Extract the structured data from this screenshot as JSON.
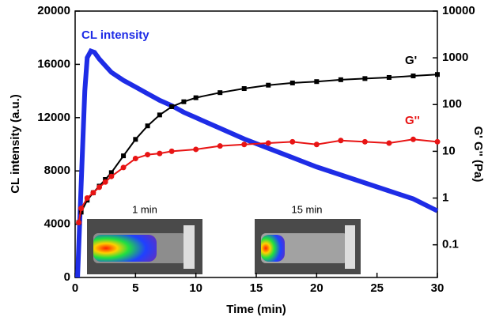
{
  "chart_data": {
    "type": "line",
    "x_label": "Time (min)",
    "y_label": "CL intensity (a.u.)",
    "y2_label": "G' G'' (Pa)",
    "xlim": [
      0,
      30
    ],
    "xticks": [
      0,
      5,
      10,
      15,
      20,
      25,
      30
    ],
    "ylim": [
      0,
      20000
    ],
    "yticks": [
      0,
      4000,
      8000,
      12000,
      16000,
      20000
    ],
    "y2lim": [
      0.02,
      10000
    ],
    "y2ticks": [
      0.1,
      1,
      10,
      100,
      1000,
      10000
    ],
    "y2_log": true,
    "series": [
      {
        "name": "CL intensity",
        "color": "#1e2ce6",
        "axis": "y",
        "x": [
          0.2,
          0.5,
          0.8,
          1,
          1.3,
          1.6,
          2,
          2.5,
          3,
          4,
          5,
          6,
          7,
          8,
          9,
          10,
          12,
          14,
          16,
          18,
          20,
          22,
          24,
          26,
          28,
          30
        ],
        "values": [
          0,
          7000,
          14000,
          16500,
          17000,
          16900,
          16400,
          15900,
          15400,
          14800,
          14300,
          13800,
          13300,
          12900,
          12400,
          12000,
          11200,
          10400,
          9700,
          9000,
          8300,
          7700,
          7100,
          6500,
          5900,
          5000
        ]
      },
      {
        "name": "G'",
        "color": "#000000",
        "axis": "y2",
        "x": [
          0.3,
          0.5,
          1,
          1.5,
          2,
          2.5,
          3,
          4,
          5,
          6,
          7,
          8,
          9,
          10,
          12,
          14,
          16,
          18,
          20,
          22,
          24,
          26,
          28,
          30
        ],
        "values": [
          0.3,
          0.5,
          0.9,
          1.3,
          1.8,
          2.5,
          3.5,
          8,
          18,
          35,
          60,
          90,
          115,
          140,
          180,
          220,
          260,
          290,
          310,
          340,
          360,
          380,
          410,
          440
        ]
      },
      {
        "name": "G''",
        "color": "#e81414",
        "axis": "y2",
        "x": [
          0.3,
          0.5,
          1,
          1.5,
          2,
          2.5,
          3,
          4,
          5,
          6,
          7,
          8,
          10,
          12,
          14,
          16,
          18,
          20,
          22,
          24,
          26,
          28,
          30
        ],
        "values": [
          0.3,
          0.6,
          1.0,
          1.3,
          1.7,
          2.2,
          2.9,
          4.5,
          7,
          8.5,
          9,
          10,
          11,
          13,
          14,
          15,
          16,
          14,
          17,
          16,
          15,
          18,
          16
        ]
      }
    ],
    "annotations": [
      "1 min",
      "15 min"
    ]
  }
}
